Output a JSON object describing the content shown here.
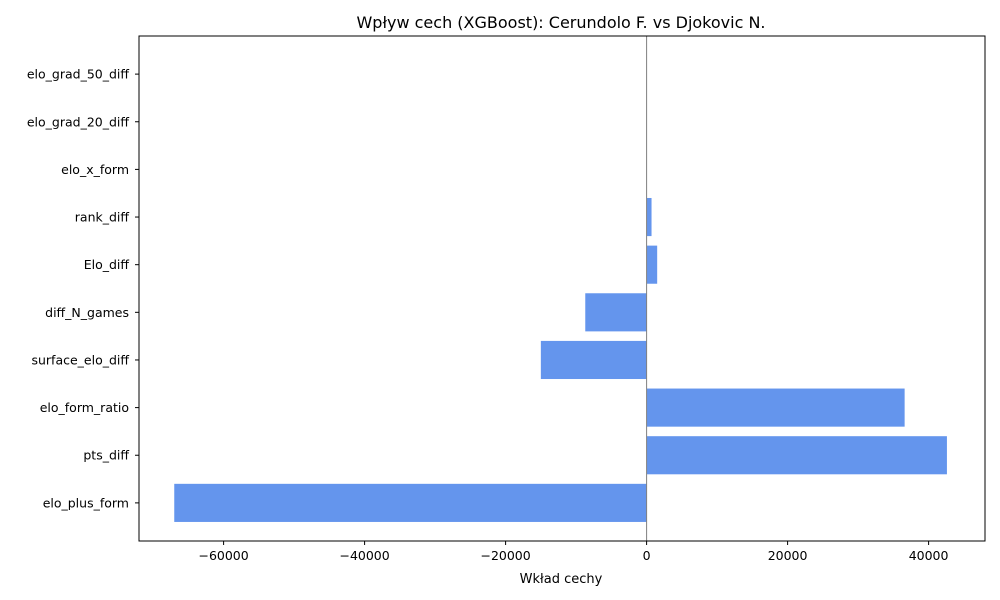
{
  "chart_data": {
    "type": "bar",
    "orientation": "horizontal",
    "title": "Wpływ cech (XGBoost): Cerundolo F. vs Djokovic N.",
    "xlabel": "Wkład cechy",
    "ylabel": "",
    "categories": [
      "elo_plus_form",
      "pts_diff",
      "elo_form_ratio",
      "surface_elo_diff",
      "diff_N_games",
      "Elo_diff",
      "rank_diff",
      "elo_x_form",
      "elo_grad_20_diff",
      "elo_grad_50_diff"
    ],
    "values": [
      -67000,
      42600,
      36600,
      -15000,
      -8700,
      1500,
      700,
      0,
      0,
      0
    ],
    "xlim": [
      -72000,
      48000
    ],
    "xticks": [
      -60000,
      -40000,
      -20000,
      0,
      20000,
      40000
    ],
    "xtick_labels": [
      "−60000",
      "−40000",
      "−20000",
      "0",
      "20000",
      "40000"
    ],
    "grid": false,
    "bar_color": "#6495ed",
    "zero_line_color": "#808080"
  }
}
